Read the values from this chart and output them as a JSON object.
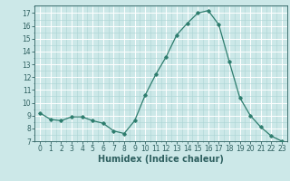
{
  "x": [
    0,
    1,
    2,
    3,
    4,
    5,
    6,
    7,
    8,
    9,
    10,
    11,
    12,
    13,
    14,
    15,
    16,
    17,
    18,
    19,
    20,
    21,
    22,
    23
  ],
  "y": [
    9.2,
    8.7,
    8.6,
    8.9,
    8.9,
    8.6,
    8.4,
    7.8,
    7.6,
    8.6,
    10.6,
    12.2,
    13.6,
    15.3,
    16.2,
    17.0,
    17.2,
    16.1,
    13.2,
    10.4,
    9.0,
    8.1,
    7.4,
    7.0
  ],
  "line_color": "#2e7d6e",
  "marker": "D",
  "marker_size": 1.8,
  "bg_color": "#cce8e8",
  "grid_major_color": "#ffffff",
  "grid_minor_color": "#aad4d4",
  "xlabel": "Humidex (Indice chaleur)",
  "xlim": [
    -0.5,
    23.5
  ],
  "ylim": [
    7,
    17.6
  ],
  "yticks": [
    7,
    8,
    9,
    10,
    11,
    12,
    13,
    14,
    15,
    16,
    17
  ],
  "xticks": [
    0,
    1,
    2,
    3,
    4,
    5,
    6,
    7,
    8,
    9,
    10,
    11,
    12,
    13,
    14,
    15,
    16,
    17,
    18,
    19,
    20,
    21,
    22,
    23
  ],
  "label_fontsize": 5.5,
  "xlabel_fontsize": 7,
  "tick_color": "#2e6060",
  "axis_color": "#2e6060",
  "linewidth": 0.9
}
